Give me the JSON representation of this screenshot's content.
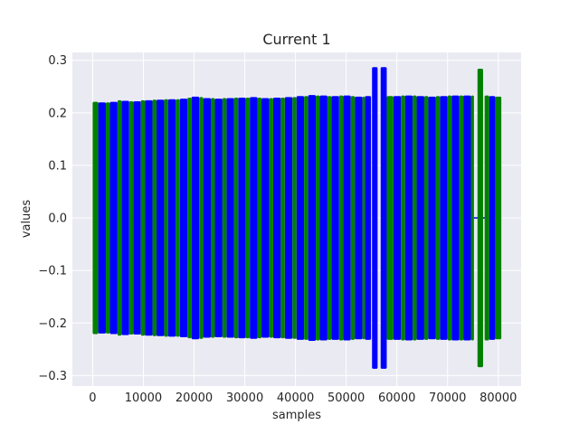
{
  "chart_data": {
    "type": "line",
    "title": "Current 1",
    "xlabel": "samples",
    "ylabel": "values",
    "xlim": [
      -4000,
      84500
    ],
    "ylim": [
      -0.32,
      0.315
    ],
    "x_ticks": [
      0,
      10000,
      20000,
      30000,
      40000,
      50000,
      60000,
      70000,
      80000
    ],
    "y_ticks": [
      -0.3,
      -0.2,
      -0.1,
      0.0,
      0.1,
      0.2,
      0.3
    ],
    "x_tick_labels": [
      "0",
      "10000",
      "20000",
      "30000",
      "40000",
      "50000",
      "60000",
      "70000",
      "80000"
    ],
    "y_tick_labels": [
      "−0.3",
      "−0.2",
      "−0.1",
      "0.0",
      "0.1",
      "0.2",
      "0.3"
    ],
    "grid": true,
    "style": "seaborn-darkgrid",
    "colors": {
      "background": "#eaeaf2",
      "grid": "#ffffff",
      "series_a": "#0000ff",
      "series_b": "#008000",
      "text": "#262626"
    },
    "series": [
      {
        "color": "#0000ff",
        "description_units": "alternating oscillation bursts; x = start/end sample, amp = peak |value|",
        "bursts": [
          {
            "x0": 1100,
            "x1": 2600,
            "amp": 0.22
          },
          {
            "x0": 3400,
            "x1": 4900,
            "amp": 0.221
          },
          {
            "x0": 5700,
            "x1": 7200,
            "amp": 0.223
          },
          {
            "x0": 8000,
            "x1": 9500,
            "amp": 0.222
          },
          {
            "x0": 10300,
            "x1": 11800,
            "amp": 0.224
          },
          {
            "x0": 12600,
            "x1": 14100,
            "amp": 0.225
          },
          {
            "x0": 14900,
            "x1": 16400,
            "amp": 0.226
          },
          {
            "x0": 17200,
            "x1": 18700,
            "amp": 0.227
          },
          {
            "x0": 19500,
            "x1": 21000,
            "amp": 0.231
          },
          {
            "x0": 21800,
            "x1": 23300,
            "amp": 0.228
          },
          {
            "x0": 24100,
            "x1": 25600,
            "amp": 0.227
          },
          {
            "x0": 26400,
            "x1": 27900,
            "amp": 0.228
          },
          {
            "x0": 28700,
            "x1": 30200,
            "amp": 0.229
          },
          {
            "x0": 31000,
            "x1": 32500,
            "amp": 0.23
          },
          {
            "x0": 33300,
            "x1": 34800,
            "amp": 0.228
          },
          {
            "x0": 35600,
            "x1": 37100,
            "amp": 0.229
          },
          {
            "x0": 37900,
            "x1": 39400,
            "amp": 0.23
          },
          {
            "x0": 40200,
            "x1": 41700,
            "amp": 0.232
          },
          {
            "x0": 42500,
            "x1": 44000,
            "amp": 0.234
          },
          {
            "x0": 44800,
            "x1": 46300,
            "amp": 0.233
          },
          {
            "x0": 47100,
            "x1": 48600,
            "amp": 0.232
          },
          {
            "x0": 49400,
            "x1": 50900,
            "amp": 0.233
          },
          {
            "x0": 51700,
            "x1": 53200,
            "amp": 0.231
          },
          {
            "x0": 53700,
            "x1": 54900,
            "amp": 0.232
          },
          {
            "x0": 55100,
            "x1": 56200,
            "amp": 0.287
          },
          {
            "x0": 56800,
            "x1": 58000,
            "amp": 0.287
          },
          {
            "x0": 59300,
            "x1": 60800,
            "amp": 0.232
          },
          {
            "x0": 61600,
            "x1": 63100,
            "amp": 0.233
          },
          {
            "x0": 63900,
            "x1": 65400,
            "amp": 0.232
          },
          {
            "x0": 66200,
            "x1": 67700,
            "amp": 0.231
          },
          {
            "x0": 68500,
            "x1": 70000,
            "amp": 0.232
          },
          {
            "x0": 70800,
            "x1": 72300,
            "amp": 0.233
          },
          {
            "x0": 73100,
            "x1": 74600,
            "amp": 0.233
          },
          {
            "x0": 78200,
            "x1": 79400,
            "amp": 0.232
          }
        ]
      },
      {
        "color": "#008000",
        "description_units": "alternating oscillation bursts; x = start/end sample, amp = peak |value|",
        "bursts": [
          {
            "x0": 0,
            "x1": 1100,
            "amp": 0.221
          },
          {
            "x0": 2600,
            "x1": 3400,
            "amp": 0.22
          },
          {
            "x0": 4900,
            "x1": 5700,
            "amp": 0.224
          },
          {
            "x0": 7200,
            "x1": 8000,
            "amp": 0.222
          },
          {
            "x0": 9500,
            "x1": 10300,
            "amp": 0.224
          },
          {
            "x0": 11800,
            "x1": 12600,
            "amp": 0.225
          },
          {
            "x0": 14100,
            "x1": 14900,
            "amp": 0.226
          },
          {
            "x0": 16400,
            "x1": 17200,
            "amp": 0.226
          },
          {
            "x0": 18700,
            "x1": 19500,
            "amp": 0.229
          },
          {
            "x0": 21000,
            "x1": 21800,
            "amp": 0.23
          },
          {
            "x0": 23300,
            "x1": 24100,
            "amp": 0.228
          },
          {
            "x0": 25600,
            "x1": 26400,
            "amp": 0.228
          },
          {
            "x0": 27900,
            "x1": 28700,
            "amp": 0.229
          },
          {
            "x0": 30200,
            "x1": 31000,
            "amp": 0.229
          },
          {
            "x0": 32500,
            "x1": 33300,
            "amp": 0.229
          },
          {
            "x0": 34800,
            "x1": 35600,
            "amp": 0.228
          },
          {
            "x0": 37100,
            "x1": 37900,
            "amp": 0.229
          },
          {
            "x0": 39400,
            "x1": 40200,
            "amp": 0.23
          },
          {
            "x0": 41700,
            "x1": 42500,
            "amp": 0.232
          },
          {
            "x0": 44000,
            "x1": 44800,
            "amp": 0.233
          },
          {
            "x0": 46300,
            "x1": 47100,
            "amp": 0.232
          },
          {
            "x0": 48600,
            "x1": 49400,
            "amp": 0.233
          },
          {
            "x0": 50900,
            "x1": 51700,
            "amp": 0.232
          },
          {
            "x0": 53200,
            "x1": 53700,
            "amp": 0.231
          },
          {
            "x0": 58000,
            "x1": 59300,
            "amp": 0.232
          },
          {
            "x0": 60800,
            "x1": 61600,
            "amp": 0.233
          },
          {
            "x0": 63100,
            "x1": 63900,
            "amp": 0.233
          },
          {
            "x0": 65400,
            "x1": 66200,
            "amp": 0.232
          },
          {
            "x0": 67700,
            "x1": 68500,
            "amp": 0.232
          },
          {
            "x0": 70000,
            "x1": 70800,
            "amp": 0.233
          },
          {
            "x0": 72300,
            "x1": 73100,
            "amp": 0.233
          },
          {
            "x0": 74600,
            "x1": 75200,
            "amp": 0.233
          },
          {
            "x0": 75900,
            "x1": 77000,
            "amp": 0.284
          },
          {
            "x0": 77300,
            "x1": 78200,
            "amp": 0.233
          },
          {
            "x0": 79400,
            "x1": 80600,
            "amp": 0.231
          }
        ]
      }
    ],
    "flat_segments": [
      {
        "x0": 75200,
        "x1": 78200,
        "y": 0.0,
        "color": "#0000ff"
      }
    ]
  }
}
